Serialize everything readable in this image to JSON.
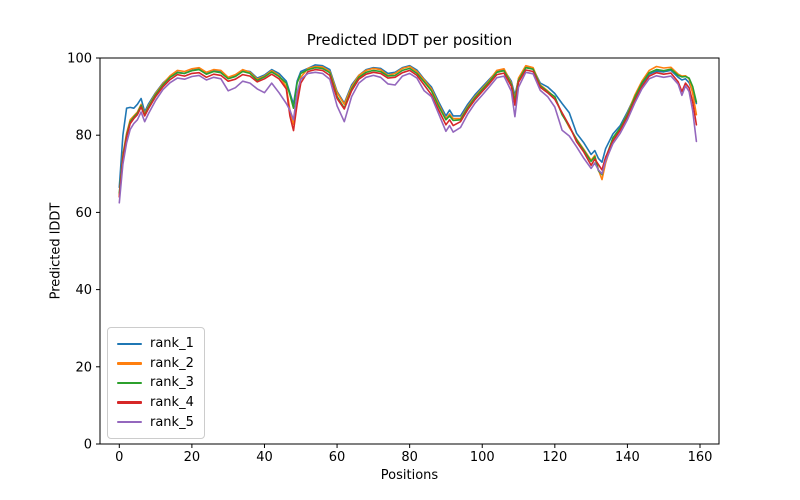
{
  "chart_data": {
    "type": "line",
    "title": "Predicted lDDT per position",
    "xlabel": "Positions",
    "ylabel": "Predicted lDDT",
    "xlim": [
      -5.3,
      165.2
    ],
    "ylim": [
      0,
      100
    ],
    "xticks": [
      0,
      20,
      40,
      60,
      80,
      100,
      120,
      140,
      160
    ],
    "yticks": [
      0,
      20,
      40,
      60,
      80,
      100
    ],
    "grid": false,
    "legend_position": "lower left",
    "axis_color": "#000000",
    "background_color": "#ffffff",
    "x": [
      0,
      1,
      2,
      3,
      4,
      5,
      6,
      7,
      8,
      10,
      12,
      14,
      16,
      18,
      20,
      22,
      24,
      26,
      28,
      30,
      32,
      34,
      36,
      38,
      40,
      42,
      44,
      46,
      47,
      48,
      49,
      50,
      52,
      54,
      56,
      58,
      60,
      62,
      64,
      66,
      68,
      70,
      72,
      74,
      76,
      78,
      80,
      82,
      84,
      86,
      88,
      90,
      91,
      92,
      94,
      96,
      98,
      100,
      102,
      104,
      106,
      108,
      109,
      110,
      112,
      114,
      116,
      118,
      120,
      122,
      124,
      126,
      128,
      130,
      131,
      132,
      133,
      134,
      136,
      138,
      140,
      142,
      144,
      146,
      148,
      150,
      152,
      154,
      155,
      156,
      157,
      158,
      159
    ],
    "series": [
      {
        "name": "rank_1",
        "color": "#1f77b4",
        "values": [
          66.5,
          80,
          87,
          87.2,
          87,
          88,
          89.5,
          86,
          88,
          91,
          93.5,
          95.2,
          96.3,
          96,
          96.8,
          97.2,
          96,
          96.8,
          96.5,
          94.8,
          95.5,
          96.8,
          96.5,
          94.8,
          95.6,
          97,
          96,
          94,
          91,
          88,
          94,
          96.5,
          97.3,
          98.2,
          98,
          97,
          91.3,
          88.3,
          93,
          95.5,
          97,
          97.5,
          97.3,
          96,
          96.3,
          97.5,
          98,
          96.9,
          94.5,
          92.5,
          88.6,
          85,
          86.5,
          85,
          85,
          88,
          90.5,
          92.5,
          94.5,
          96.5,
          96.9,
          94,
          90.3,
          94.5,
          97.6,
          97.2,
          93.5,
          92.5,
          90.8,
          88.2,
          85.8,
          80.5,
          78,
          75,
          76,
          74,
          73,
          76.5,
          80.3,
          82.5,
          86,
          90,
          93.2,
          95.8,
          96.6,
          96.4,
          96.8,
          95,
          94.3,
          94.6,
          93.6,
          91.3,
          88.2
        ]
      },
      {
        "name": "rank_2",
        "color": "#ff7f0e",
        "values": [
          64.5,
          75,
          80.5,
          84,
          85,
          86,
          88,
          85.5,
          87.5,
          90.8,
          93.3,
          95.4,
          96.8,
          96.5,
          97.2,
          97.5,
          96.3,
          97,
          96.8,
          95,
          95.7,
          97,
          96.3,
          94.5,
          95.3,
          96.7,
          95.5,
          92.5,
          86.5,
          82.8,
          90,
          95,
          97.3,
          97.8,
          97.7,
          96.5,
          91,
          88,
          92.5,
          95.5,
          96.8,
          97.3,
          97,
          95.5,
          96,
          97.3,
          97.8,
          96.5,
          94.3,
          92,
          88,
          84.3,
          85.5,
          84.3,
          84.3,
          87.4,
          90,
          92.1,
          94.2,
          96.8,
          97.2,
          93.5,
          89.3,
          94.8,
          98,
          97.5,
          93,
          91.5,
          89.8,
          85.6,
          82,
          79,
          76.3,
          73.5,
          74.8,
          71,
          68.5,
          72.8,
          78.8,
          81.8,
          85.5,
          90.3,
          94,
          96.8,
          97.8,
          97.4,
          97.6,
          95.8,
          95.3,
          95.4,
          94.6,
          90.8,
          85.3
        ]
      },
      {
        "name": "rank_3",
        "color": "#2ca02c",
        "values": [
          65,
          74.5,
          80,
          83.5,
          84.7,
          85.7,
          87.7,
          85.2,
          87.2,
          90.5,
          93,
          95,
          96.2,
          96,
          96.7,
          97,
          95.8,
          96.5,
          96.2,
          94.6,
          95.2,
          96.5,
          96,
          94.2,
          95.1,
          96.4,
          95.2,
          93.5,
          90.5,
          87,
          93.5,
          96,
          97,
          97.5,
          97.3,
          96.2,
          90,
          87,
          92,
          95,
          96.3,
          96.8,
          96.5,
          95.3,
          95.5,
          96.8,
          97.3,
          96,
          93.8,
          91.5,
          87.5,
          84,
          85,
          83.8,
          84,
          87.1,
          89.7,
          91.8,
          93.9,
          96.3,
          96.7,
          93.2,
          88.9,
          94.2,
          97.5,
          97.1,
          92.8,
          91.3,
          90,
          85.3,
          82.3,
          78.8,
          76,
          73.2,
          74.4,
          70.8,
          69.8,
          74,
          79.3,
          81.9,
          85.3,
          89.8,
          93.5,
          96.2,
          97,
          96.7,
          97.1,
          95.5,
          95.1,
          95.2,
          94.8,
          92.6,
          88.6
        ]
      },
      {
        "name": "rank_4",
        "color": "#d62728",
        "values": [
          64,
          74,
          79.5,
          83,
          84.3,
          85.3,
          87.3,
          85,
          86.8,
          90,
          92.5,
          94.4,
          95.7,
          95.3,
          96,
          96.2,
          95,
          95.8,
          95.5,
          94,
          94.5,
          95.7,
          95.3,
          93.8,
          94.6,
          95.8,
          94.6,
          92,
          85,
          81.2,
          88,
          93.5,
          96.5,
          97,
          96.8,
          95.5,
          89.5,
          86.8,
          91.5,
          94.5,
          95.8,
          96.3,
          96,
          94.8,
          95,
          96.2,
          96.8,
          95.5,
          93,
          90.5,
          86.5,
          82.7,
          84,
          82.5,
          83.5,
          86.6,
          89.2,
          91.3,
          93.4,
          95.7,
          96.1,
          92.7,
          87.8,
          93.7,
          96.9,
          96.5,
          92.4,
          91,
          89.3,
          85.8,
          82.5,
          78.3,
          75.6,
          72.2,
          73.8,
          72.4,
          71,
          74.3,
          78.5,
          81.3,
          84.8,
          89,
          92.6,
          95.3,
          96.2,
          95.8,
          96.1,
          93.8,
          91.3,
          93.5,
          92.3,
          88.6,
          82.7
        ]
      },
      {
        "name": "rank_5",
        "color": "#9467bd",
        "values": [
          62.5,
          72.5,
          78,
          81.5,
          83,
          84,
          86,
          83.5,
          85.5,
          89,
          91.8,
          93.6,
          94.8,
          94.5,
          95.2,
          95.5,
          94.3,
          95,
          94.6,
          91.5,
          92.3,
          94,
          93.5,
          92,
          91,
          93.5,
          91,
          88.2,
          86.5,
          84,
          91,
          94.5,
          96,
          96.3,
          96,
          94.5,
          87.6,
          83.5,
          90,
          93.5,
          95,
          95.5,
          95,
          93.3,
          93,
          95.3,
          96,
          94.8,
          91.5,
          90,
          85.5,
          81,
          82.5,
          80.8,
          82,
          85.5,
          88.3,
          90.4,
          92.6,
          94.9,
          95.3,
          91.4,
          84.8,
          92.4,
          96.3,
          95.9,
          91.6,
          90,
          87.3,
          81.3,
          79.8,
          77,
          74,
          71.4,
          72.8,
          71,
          70,
          73.3,
          77.8,
          80.5,
          84,
          88.3,
          92,
          94.6,
          95.4,
          95,
          95.3,
          93.2,
          90.3,
          92.8,
          91.3,
          86.3,
          78.4
        ]
      }
    ]
  }
}
